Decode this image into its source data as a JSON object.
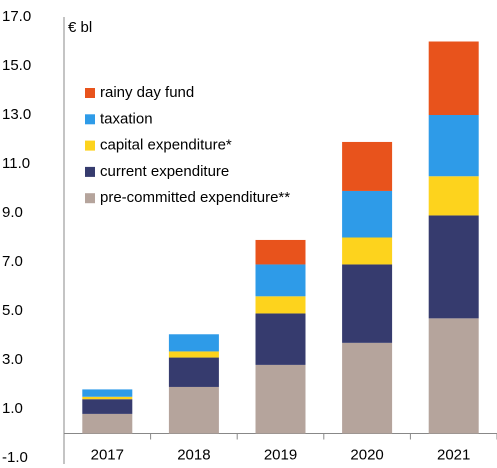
{
  "chart_data": {
    "type": "stacked-bar",
    "y_label": "€ bl",
    "categories": [
      "2017",
      "2018",
      "2019",
      "2020",
      "2021"
    ],
    "series": [
      {
        "name": "pre-committed expenditure**",
        "color": "#b5a49c",
        "values": [
          0.8,
          1.9,
          2.8,
          3.7,
          4.7
        ]
      },
      {
        "name": "current expenditure",
        "color": "#363b6e",
        "values": [
          0.6,
          1.2,
          2.1,
          3.2,
          4.2
        ]
      },
      {
        "name": "capital expenditure*",
        "color": "#fdd31d",
        "values": [
          0.1,
          0.25,
          0.7,
          1.1,
          1.6
        ]
      },
      {
        "name": "taxation",
        "color": "#2e9be8",
        "values": [
          0.3,
          0.7,
          1.3,
          1.9,
          2.5
        ]
      },
      {
        "name": "rainy day fund",
        "color": "#e8531c",
        "values": [
          0,
          0,
          1.0,
          2.0,
          3.0
        ]
      }
    ],
    "ylim": [
      -1,
      17
    ],
    "yticks": [
      {
        "value": -1,
        "label": "-1.0"
      },
      {
        "value": 1,
        "label": "1.0"
      },
      {
        "value": 3,
        "label": "3.0"
      },
      {
        "value": 5,
        "label": "5.0"
      },
      {
        "value": 7,
        "label": "7.0"
      },
      {
        "value": 9,
        "label": "9.0"
      },
      {
        "value": 11,
        "label": "11.0"
      },
      {
        "value": 13,
        "label": "13.0"
      },
      {
        "value": 15,
        "label": "15.0"
      },
      {
        "value": 17,
        "label": "17.0"
      }
    ],
    "grid": false
  }
}
